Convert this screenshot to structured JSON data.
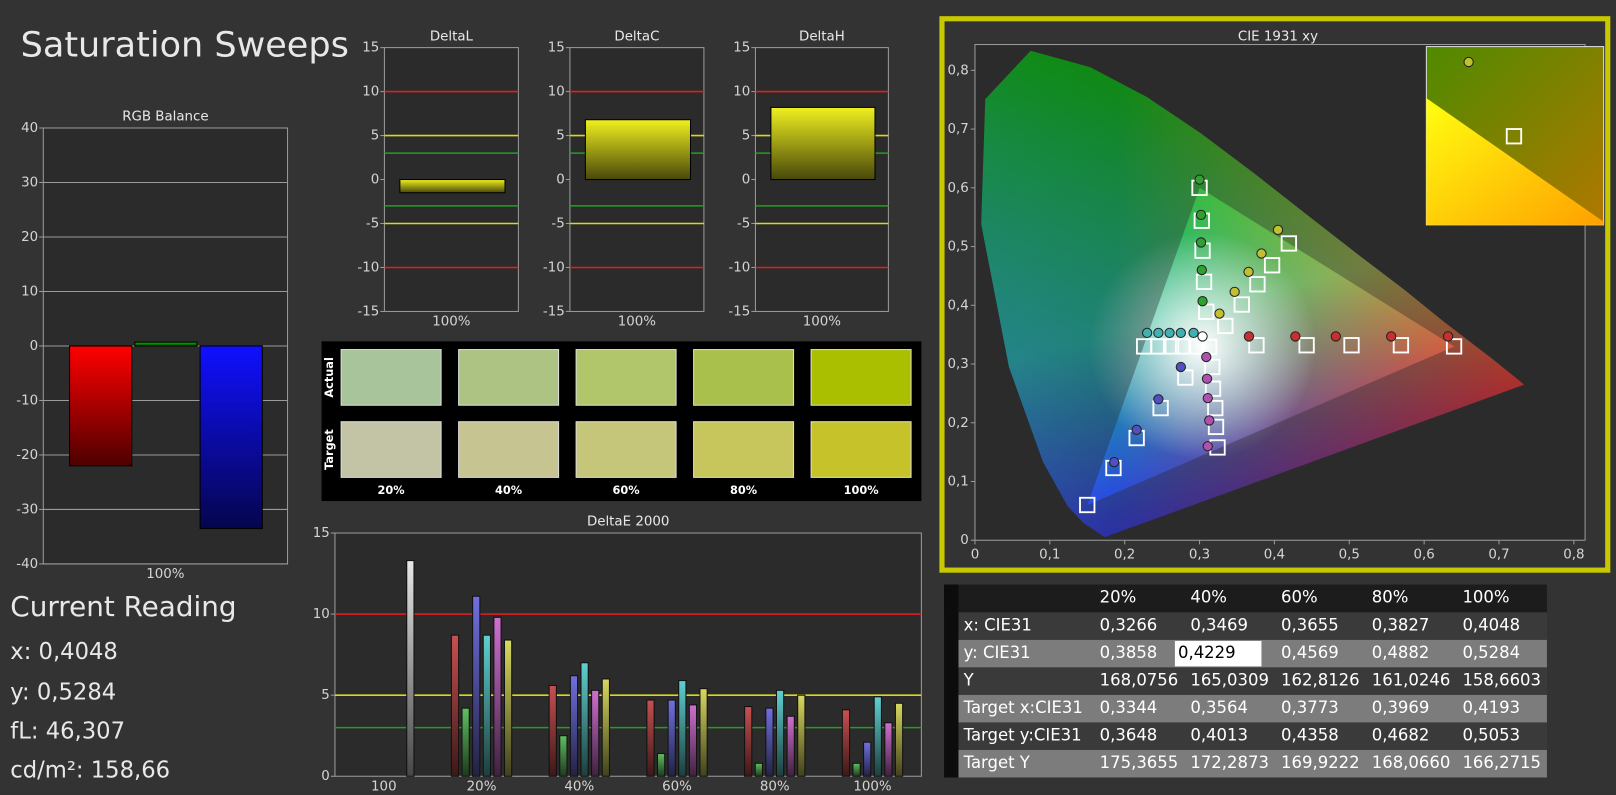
{
  "title": "Saturation Sweeps",
  "rgb_balance": {
    "type": "bar",
    "title": "RGB Balance",
    "categories": [
      "100%"
    ],
    "series": [
      {
        "color": "#ff0000",
        "values": [
          -22
        ]
      },
      {
        "color": "#00c000",
        "values": [
          0.7
        ]
      },
      {
        "color": "#1010ff",
        "values": [
          -33.5
        ]
      }
    ],
    "ylim": [
      -40,
      40
    ],
    "yticks": [
      -40,
      -30,
      -20,
      -10,
      0,
      10,
      20,
      30,
      40
    ],
    "grid": true
  },
  "deltas": [
    {
      "type": "bar",
      "title": "DeltaL",
      "categories": [
        "100%"
      ],
      "values": [
        -1.5
      ],
      "color": "#f0f020",
      "ylim": [
        -15,
        15
      ],
      "yticks": [
        -15,
        -10,
        -5,
        0,
        5,
        10,
        15
      ],
      "ref_lines": [
        {
          "value": 10,
          "color": "#e02020"
        },
        {
          "value": -10,
          "color": "#e02020"
        },
        {
          "value": 5,
          "color": "#d8d820"
        },
        {
          "value": -5,
          "color": "#d8d820"
        },
        {
          "value": 3,
          "color": "#20a020"
        },
        {
          "value": -3,
          "color": "#20a020"
        }
      ]
    },
    {
      "type": "bar",
      "title": "DeltaC",
      "categories": [
        "100%"
      ],
      "values": [
        6.8
      ],
      "color": "#f0f020",
      "ylim": [
        -15,
        15
      ],
      "yticks": [
        -15,
        -10,
        -5,
        0,
        5,
        10,
        15
      ],
      "ref_lines": [
        {
          "value": 10,
          "color": "#e02020"
        },
        {
          "value": -10,
          "color": "#e02020"
        },
        {
          "value": 5,
          "color": "#d8d820"
        },
        {
          "value": -5,
          "color": "#d8d820"
        },
        {
          "value": 3,
          "color": "#20a020"
        },
        {
          "value": -3,
          "color": "#20a020"
        }
      ]
    },
    {
      "type": "bar",
      "title": "DeltaH",
      "categories": [
        "100%"
      ],
      "values": [
        8.2
      ],
      "color": "#f0f020",
      "ylim": [
        -15,
        15
      ],
      "yticks": [
        -15,
        -10,
        -5,
        0,
        5,
        10,
        15
      ],
      "ref_lines": [
        {
          "value": 10,
          "color": "#e02020"
        },
        {
          "value": -10,
          "color": "#e02020"
        },
        {
          "value": 5,
          "color": "#d8d820"
        },
        {
          "value": -5,
          "color": "#d8d820"
        },
        {
          "value": 3,
          "color": "#20a020"
        },
        {
          "value": -3,
          "color": "#20a020"
        }
      ]
    }
  ],
  "swatches": {
    "row_labels": [
      "Actual",
      "Target"
    ],
    "columns": [
      "20%",
      "40%",
      "60%",
      "80%",
      "100%"
    ],
    "actual_colors": [
      "#a8c49a",
      "#adc383",
      "#b1c56a",
      "#aac04d",
      "#aabf00"
    ],
    "target_colors": [
      "#c3c3a6",
      "#c6c592",
      "#c6c67a",
      "#c6c65c",
      "#c6c22a"
    ]
  },
  "deltae": {
    "type": "bar",
    "title": "DeltaE 2000",
    "categories": [
      "100",
      "20%",
      "40%",
      "60%",
      "80%",
      "100%"
    ],
    "series": [
      {
        "color": "#e8e8e8",
        "values": [
          13.3,
          null,
          null,
          null,
          null,
          null
        ]
      },
      {
        "color": "#c85050",
        "values": [
          null,
          8.7,
          5.6,
          4.7,
          4.3,
          4.1
        ]
      },
      {
        "color": "#60c060",
        "values": [
          null,
          4.2,
          2.5,
          1.4,
          0.8,
          0.8
        ]
      },
      {
        "color": "#7070e0",
        "values": [
          null,
          11.1,
          6.2,
          4.7,
          4.2,
          2.1
        ]
      },
      {
        "color": "#60d0d0",
        "values": [
          null,
          8.7,
          7.0,
          5.9,
          5.3,
          4.9
        ]
      },
      {
        "color": "#d070d0",
        "values": [
          null,
          9.8,
          5.3,
          4.4,
          3.7,
          3.3
        ]
      },
      {
        "color": "#d8d860",
        "values": [
          null,
          8.4,
          6.0,
          5.4,
          5.0,
          4.5
        ]
      }
    ],
    "ylim": [
      0,
      15
    ],
    "yticks": [
      0,
      5,
      10,
      15
    ],
    "ref_lines": [
      {
        "value": 10,
        "color": "#e02020"
      },
      {
        "value": 5,
        "color": "#d8d820"
      },
      {
        "value": 3,
        "color": "#20a020"
      }
    ]
  },
  "cie": {
    "type": "scatter",
    "title": "CIE 1931 xy",
    "xlim": [
      0,
      0.815
    ],
    "ylim": [
      0,
      0.844
    ],
    "xticks": [
      0,
      {
        "value": 0.1,
        "label": "0,1"
      },
      {
        "value": 0.2,
        "label": "0,2"
      },
      {
        "value": 0.3,
        "label": "0,3"
      },
      {
        "value": 0.4,
        "label": "0,4"
      },
      {
        "value": 0.5,
        "label": "0,5"
      },
      {
        "value": 0.6,
        "label": "0,6"
      },
      {
        "value": 0.7,
        "label": "0,7"
      },
      {
        "value": 0.8,
        "label": "0,8"
      }
    ],
    "yticks": [
      0,
      {
        "value": 0.1,
        "label": "0,1"
      },
      {
        "value": 0.2,
        "label": "0,2"
      },
      {
        "value": 0.3,
        "label": "0,3"
      },
      {
        "value": 0.4,
        "label": "0,4"
      },
      {
        "value": 0.5,
        "label": "0,5"
      },
      {
        "value": 0.6,
        "label": "0,6"
      },
      {
        "value": 0.7,
        "label": "0,7"
      },
      {
        "value": 0.8,
        "label": "0,8"
      }
    ],
    "sweeps": [
      {
        "color": "#c83030",
        "target_x": [
          0.376,
          0.443,
          0.503,
          0.569,
          0.64
        ],
        "target_y": [
          0.332,
          0.332,
          0.332,
          0.332,
          0.33
        ],
        "actual_x": [
          0.366,
          0.428,
          0.482,
          0.556,
          0.632
        ],
        "actual_y": [
          0.347,
          0.347,
          0.347,
          0.347,
          0.347
        ]
      },
      {
        "color": "#30a030",
        "target_x": [
          0.309,
          0.306,
          0.304,
          0.303,
          0.3
        ],
        "target_y": [
          0.389,
          0.44,
          0.493,
          0.544,
          0.6
        ],
        "actual_x": [
          0.304,
          0.303,
          0.302,
          0.302,
          0.3
        ],
        "actual_y": [
          0.407,
          0.46,
          0.507,
          0.554,
          0.614
        ]
      },
      {
        "color": "#5050c0",
        "target_x": [
          0.281,
          0.248,
          0.216,
          0.185,
          0.15
        ],
        "target_y": [
          0.277,
          0.225,
          0.174,
          0.123,
          0.06
        ],
        "actual_x": [
          0.275,
          0.245,
          0.216,
          0.186,
          null
        ],
        "actual_y": [
          0.295,
          0.24,
          0.188,
          0.133,
          null
        ]
      },
      {
        "color": "#40b0b0",
        "target_x": [
          0.296,
          0.278,
          0.262,
          0.245,
          0.226
        ],
        "target_y": [
          0.33,
          0.33,
          0.33,
          0.33,
          0.33
        ],
        "actual_x": [
          0.292,
          0.275,
          0.26,
          0.245,
          0.23
        ],
        "actual_y": [
          0.353,
          0.353,
          0.353,
          0.353,
          0.353
        ]
      },
      {
        "color": "#b050b0",
        "target_x": [
          0.317,
          0.318,
          0.321,
          0.322,
          0.324
        ],
        "target_y": [
          0.295,
          0.258,
          0.225,
          0.193,
          0.158
        ],
        "actual_x": [
          0.309,
          0.31,
          0.311,
          0.313,
          0.311
        ],
        "actual_y": [
          0.312,
          0.275,
          0.242,
          0.204,
          0.16
        ]
      },
      {
        "color": "#c0c030",
        "target_x": [
          0.3344,
          0.3564,
          0.3773,
          0.3969,
          0.4193
        ],
        "target_y": [
          0.3648,
          0.4013,
          0.4358,
          0.4682,
          0.5053
        ],
        "actual_x": [
          0.3266,
          0.3469,
          0.3655,
          0.3827,
          0.4048
        ],
        "actual_y": [
          0.3858,
          0.4229,
          0.4569,
          0.4882,
          0.5284
        ]
      },
      {
        "color": "#ffffff",
        "target_x": [
          0.3127
        ],
        "target_y": [
          0.329
        ],
        "actual_x": [
          0.304
        ],
        "actual_y": [
          0.347
        ]
      }
    ]
  },
  "table": {
    "header": [
      "20%",
      "40%",
      "60%",
      "80%",
      "100%"
    ],
    "rows": [
      {
        "label": "x: CIE31",
        "values": [
          "0,3266",
          "0,3469",
          "0,3655",
          "0,3827",
          "0,4048"
        ]
      },
      {
        "label": "y: CIE31",
        "values": [
          "0,3858",
          "0,4229",
          "0,4569",
          "0,4882",
          "0,5284"
        ]
      },
      {
        "label": "Y",
        "values": [
          "168,0756",
          "165,0309",
          "162,8126",
          "161,0246",
          "158,6603"
        ]
      },
      {
        "label": "Target x:CIE31",
        "values": [
          "0,3344",
          "0,3564",
          "0,3773",
          "0,3969",
          "0,4193"
        ]
      },
      {
        "label": "Target y:CIE31",
        "values": [
          "0,3648",
          "0,4013",
          "0,4358",
          "0,4682",
          "0,5053"
        ]
      },
      {
        "label": "Target Y",
        "values": [
          "175,3655",
          "172,2873",
          "169,9222",
          "168,0660",
          "166,2715"
        ]
      }
    ]
  },
  "current_reading": {
    "title": "Current Reading",
    "lines": [
      "x: 0,4048",
      "y: 0,5284",
      "fL: 46,307",
      "cd/m²: 158,66"
    ]
  }
}
